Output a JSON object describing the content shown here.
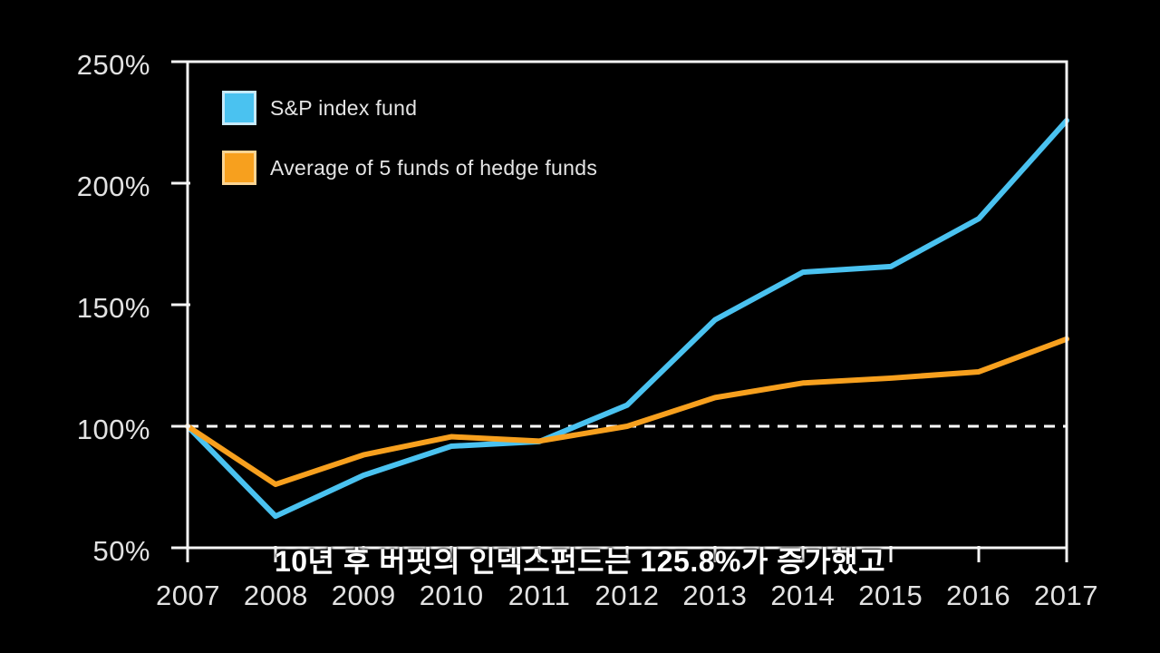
{
  "legend": {
    "items": [
      {
        "label": "S&P index fund",
        "color": "#4AC2F0",
        "border_color": "#C7EAFA"
      },
      {
        "label": "Average of 5 funds of hedge funds",
        "color": "#F7A01E",
        "border_color": "#FAD493"
      }
    ]
  },
  "caption": {
    "text": "10년 후 버핏의 인덱스펀드는 125.8%가 증가했고"
  },
  "chart_data": {
    "type": "line",
    "x": [
      2007,
      2008,
      2009,
      2010,
      2011,
      2012,
      2013,
      2014,
      2015,
      2016,
      2017
    ],
    "x_labels": [
      "2007",
      "2008",
      "2009",
      "2010",
      "2011",
      "2012",
      "2013",
      "2014",
      "2015",
      "2016",
      "2017"
    ],
    "ylim": [
      50,
      250
    ],
    "yticks": [
      250,
      200,
      150,
      100,
      50
    ],
    "ytick_labels": [
      "250%",
      "200%",
      "150%",
      "100%",
      "50%"
    ],
    "reference_line": 100,
    "grid": false,
    "legend_position": "top-left",
    "axis_color": "#F5F5F5",
    "label_color": "#E2E2E2",
    "background_color": "#000000",
    "series": [
      {
        "name": "S&P index fund",
        "color": "#4AC2F0",
        "values": [
          100,
          63.0,
          79.8,
          91.8,
          93.7,
          108.7,
          143.8,
          163.4,
          165.7,
          185.4,
          225.8
        ]
      },
      {
        "name": "Average of 5 funds of hedge funds",
        "color": "#F7A01E",
        "values": [
          100,
          76.1,
          88.2,
          95.7,
          93.9,
          100.0,
          111.8,
          117.8,
          119.8,
          122.4,
          135.9
        ]
      }
    ]
  }
}
